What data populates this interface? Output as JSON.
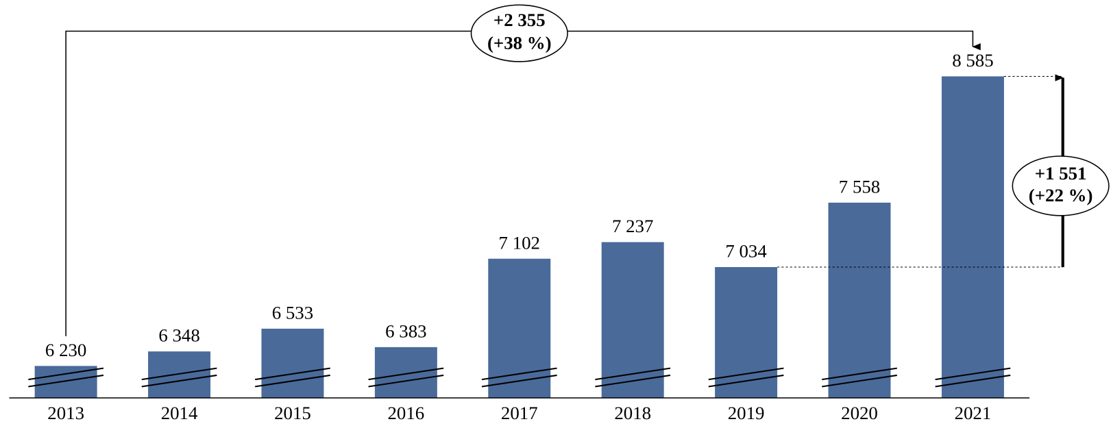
{
  "chart_data": {
    "type": "bar",
    "categories": [
      "2013",
      "2014",
      "2015",
      "2016",
      "2017",
      "2018",
      "2019",
      "2020",
      "2021"
    ],
    "values": [
      6230,
      6348,
      6533,
      6383,
      7102,
      7237,
      7034,
      7558,
      8585
    ],
    "value_labels": [
      "6 230",
      "6 348",
      "6 533",
      "6 383",
      "7 102",
      "7 237",
      "7 034",
      "7 558",
      "8 585"
    ],
    "color": "#4a6a9a",
    "ylim": [
      5970,
      9200
    ],
    "annotations": [
      {
        "lines": [
          "+2 355",
          "(+38 %)"
        ]
      },
      {
        "lines": [
          "+1 551",
          "(+22 %)"
        ]
      }
    ]
  }
}
